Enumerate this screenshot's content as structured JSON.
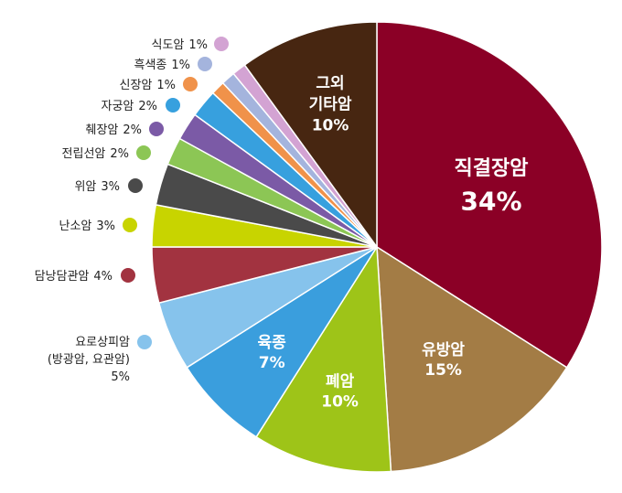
{
  "chart_data": {
    "type": "pie",
    "title": "",
    "slices": [
      {
        "label": "직결장암",
        "value_text": "34%",
        "value": 34,
        "color": "#8b0026"
      },
      {
        "label": "유방암",
        "value_text": "15%",
        "value": 15,
        "color": "#a37c45"
      },
      {
        "label": "폐암",
        "value_text": "10%",
        "value": 10,
        "color": "#9ec418"
      },
      {
        "label": "육종",
        "value_text": "7%",
        "value": 7,
        "color": "#3a9edd"
      },
      {
        "label": "요로상피암",
        "label_line2": "(방광암, 요관암)",
        "value_text": "5%",
        "value": 5,
        "color": "#86c3ec"
      },
      {
        "label": "담낭담관암",
        "value_text": "4%",
        "value": 4,
        "color": "#a23340"
      },
      {
        "label": "난소암",
        "value_text": "3%",
        "value": 3,
        "color": "#c8d400"
      },
      {
        "label": "위암",
        "value_text": "3%",
        "value": 3,
        "color": "#4a4a4a"
      },
      {
        "label": "전립선암",
        "value_text": "2%",
        "value": 2,
        "color": "#8cc655"
      },
      {
        "label": "췌장암",
        "value_text": "2%",
        "value": 2,
        "color": "#7b5aa6"
      },
      {
        "label": "자궁암",
        "value_text": "2%",
        "value": 2,
        "color": "#37a0de"
      },
      {
        "label": "신장암",
        "value_text": "1%",
        "value": 1,
        "color": "#f0924a"
      },
      {
        "label": "흑색종",
        "value_text": "1%",
        "value": 1,
        "color": "#a4b4dd"
      },
      {
        "label": "식도암",
        "value_text": "1%",
        "value": 1,
        "color": "#d3a3d3"
      },
      {
        "label": "그외",
        "label_line2": "기타암",
        "value_text": "10%",
        "value": 10,
        "color": "#472611"
      }
    ]
  }
}
